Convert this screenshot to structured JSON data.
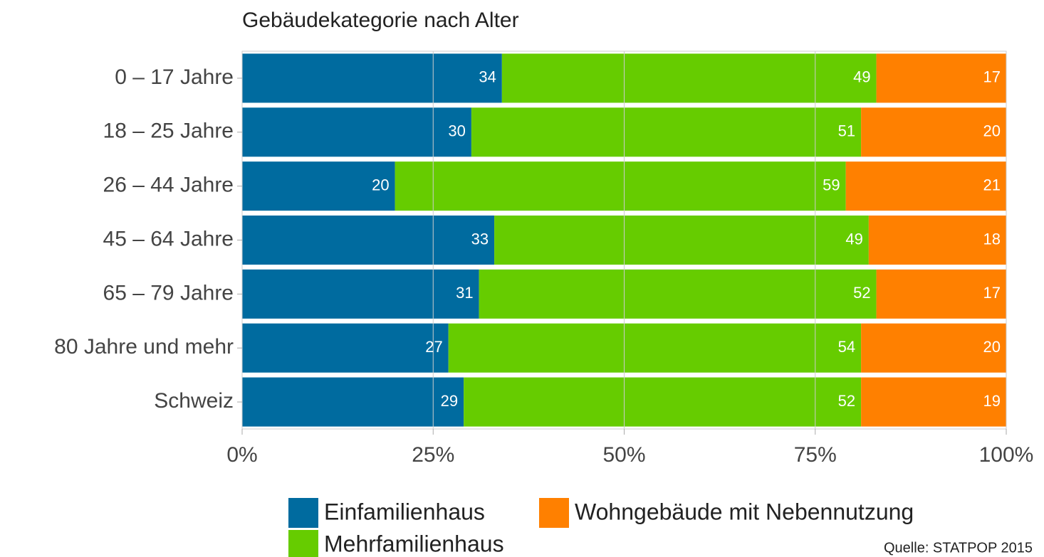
{
  "chart_data": {
    "type": "stacked-bar-horizontal",
    "title": "Gebäudekategorie nach Alter",
    "categories": [
      "0 – 17 Jahre",
      "18 – 25 Jahre",
      "26 – 44 Jahre",
      "45 – 64 Jahre",
      "65 – 79 Jahre",
      "80 Jahre und mehr",
      "Schweiz"
    ],
    "series": [
      {
        "name": "Einfamilienhaus",
        "color": "#006b9f",
        "values": [
          34,
          30,
          20,
          33,
          31,
          27,
          29
        ]
      },
      {
        "name": "Mehrfamilienhaus",
        "color": "#66cc00",
        "values": [
          49,
          51,
          59,
          49,
          52,
          54,
          52
        ]
      },
      {
        "name": "Wohngebäude mit Nebennutzung",
        "color": "#ff8000",
        "values": [
          17,
          20,
          21,
          18,
          17,
          20,
          19
        ]
      }
    ],
    "xlim": [
      0,
      100
    ],
    "xticks": [
      {
        "value": 0,
        "label": "0%"
      },
      {
        "value": 25,
        "label": "25%"
      },
      {
        "value": 50,
        "label": "50%"
      },
      {
        "value": 75,
        "label": "75%"
      },
      {
        "value": 100,
        "label": "100%"
      }
    ],
    "grid": true,
    "source": "Quelle: STATPOP 2015"
  }
}
